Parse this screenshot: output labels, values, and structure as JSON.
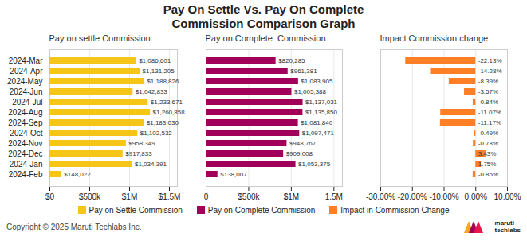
{
  "title": "Pay On Settle Vs. Pay On Complete",
  "subtitle": "Commission Comparison Graph",
  "annotations": [
    "Copyright © 2025 Maruti Techlabs Inc.",
    "maruti",
    "techlabs"
  ],
  "chart_data": [
    {
      "type": "bar",
      "orientation": "horizontal",
      "title": "Pay on settle Commission",
      "categories": [
        "2024-Mar",
        "2024-Apr",
        "2024-May",
        "2024-Jun",
        "2024-Jul",
        "2024-Aug",
        "2024-Sep",
        "2024-Oct",
        "2024-Nov",
        "2024-Dec",
        "2024-Jan",
        "2024-Feb"
      ],
      "series": [
        {
          "name": "Pay on Settle Commission",
          "color": "#F5C518",
          "values": [
            1086601,
            1131205,
            1188826,
            1042833,
            1233671,
            1260858,
            1183030,
            1102532,
            958349,
            917833,
            1034391,
            148022
          ],
          "value_labels": [
            "$1,086,601",
            "$1,131,205",
            "$1,188,826",
            "$1,042,833",
            "$1,233,671",
            "$1,260,858",
            "$1,183,030",
            "$1,102,532",
            "$958,349",
            "$917,833",
            "$1,034,391",
            "$148,022"
          ]
        }
      ],
      "xlim": [
        0,
        1600000
      ],
      "xticks": [
        {
          "value": 0,
          "label": "$0"
        },
        {
          "value": 500000,
          "label": "$500k"
        },
        {
          "value": 1000000,
          "label": "$1M"
        },
        {
          "value": 1500000,
          "label": "$1.5M"
        }
      ],
      "grid": true,
      "data_labels": true,
      "legend": "bottom"
    },
    {
      "type": "bar",
      "orientation": "horizontal",
      "title": "Pay on Complete  Commission",
      "categories": [
        "2024-Mar",
        "2024-Apr",
        "2024-May",
        "2024-Jun",
        "2024-Jul",
        "2024-Aug",
        "2024-Sep",
        "2024-Oct",
        "2024-Nov",
        "2024-Dec",
        "2024-Jan",
        "2024-Feb"
      ],
      "series": [
        {
          "name": "Pay on Complete Commission",
          "color": "#A0005A",
          "values": [
            820285,
            961381,
            1083905,
            1005388,
            1137031,
            1135850,
            1081840,
            1097471,
            948767,
            909008,
            1053375,
            138007
          ],
          "value_labels": [
            "$820,285",
            "$961,381",
            "$1,083,905",
            "$1,005,388",
            "$1,137,031",
            "$1,135,850",
            "$1,081,840",
            "$1,097,471",
            "$948,767",
            "$909,008",
            "$1,053,375",
            "$138,007"
          ]
        }
      ],
      "xlim": [
        0,
        1600000
      ],
      "xticks": [
        0,
        {
          "value": 500000,
          "label": "$500k"
        },
        {
          "value": 1000000,
          "label": "$1M"
        },
        {
          "value": 1500000,
          "label": "1.5M"
        }
      ],
      "grid": true,
      "data_labels": true,
      "legend": "bottom",
      "tick_labels": "x"
    },
    {
      "type": "bar",
      "orientation": "horizontal",
      "title": "Impact Commission change",
      "categories": [
        "2024-Mar",
        "2024-Apr",
        "2024-May",
        "2024-Jun",
        "2024-Jul",
        "2024-Aug",
        "2024-Sep",
        "2024-Oct",
        "2024-Nov",
        "2024-Dec",
        "2024-Jan",
        "2024-Feb"
      ],
      "series": [
        {
          "name": "Impact in Commission Change",
          "color": "#FF7F27",
          "values": [
            -22.13,
            -14.28,
            -8.39,
            -3.57,
            -0.84,
            -11.07,
            -11.17,
            -0.49,
            -0.78,
            3.43,
            1.75,
            -0.85
          ],
          "value_labels": [
            "-22.13%",
            "-14.28%",
            "-8.39%",
            "-3.57%",
            "-0.84%",
            "-11.07%",
            "-11.17%",
            "-0.49%",
            "-0.78%",
            "3.43%",
            "1.75%",
            "-0.85%"
          ]
        }
      ],
      "xlim": [
        -30,
        10
      ],
      "xticks": [
        {
          "value": -30,
          "label": "-30.00%"
        },
        {
          "value": -20,
          "label": "-20.00%"
        },
        {
          "value": -10,
          "label": "-10.00%"
        },
        {
          "value": 0,
          "label": "0.00%"
        },
        {
          "value": 10,
          "label": "10.00%"
        }
      ],
      "grid": true,
      "data_labels": true,
      "legend": "bottom",
      "tick_labels": "x"
    }
  ]
}
